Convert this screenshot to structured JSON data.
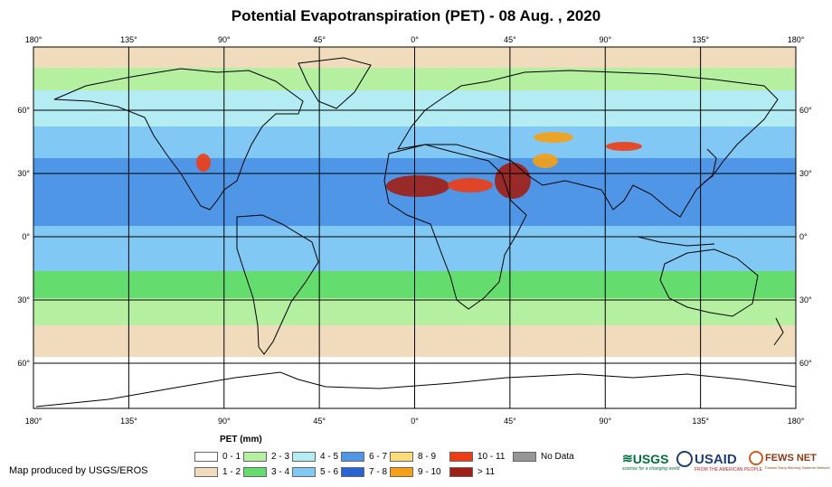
{
  "title": "Potential Evapotranspiration (PET) - 08 Aug. , 2020",
  "axes": {
    "lon_labels": [
      "180°",
      "135°",
      "90°",
      "45°",
      "0°",
      "45°",
      "90°",
      "135°",
      "180°"
    ],
    "lat_labels": [
      "60°",
      "30°",
      "0°",
      "30°",
      "60°"
    ]
  },
  "legend": {
    "title": "PET (mm)",
    "items": [
      {
        "label": "0 - 1",
        "color": "#ffffff"
      },
      {
        "label": "1 - 2",
        "color": "#f0dcbc"
      },
      {
        "label": "2 - 3",
        "color": "#b4f0a0"
      },
      {
        "label": "3 - 4",
        "color": "#64dc6e"
      },
      {
        "label": "4 - 5",
        "color": "#b4ecf4"
      },
      {
        "label": "5 - 6",
        "color": "#82c8f5"
      },
      {
        "label": "6 - 7",
        "color": "#5096e6"
      },
      {
        "label": "7 - 8",
        "color": "#2864d2"
      },
      {
        "label": "8 - 9",
        "color": "#fcdc78"
      },
      {
        "label": "9 - 10",
        "color": "#f5a014"
      },
      {
        "label": "10 - 11",
        "color": "#f03c14"
      },
      {
        "label": "> 11",
        "color": "#a01e14"
      },
      {
        "label": "No Data",
        "color": "#969696"
      }
    ]
  },
  "credit": "Map produced by USGS/EROS",
  "logos": {
    "usgs": "USGS",
    "usgs_tagline": "science for a changing world",
    "usaid": "USAID",
    "usaid_tagline": "FROM THE AMERICAN PEOPLE",
    "fewsnet": "FEWS NET",
    "fewsnet_tagline": "Famine Early Warning Systems Network"
  }
}
